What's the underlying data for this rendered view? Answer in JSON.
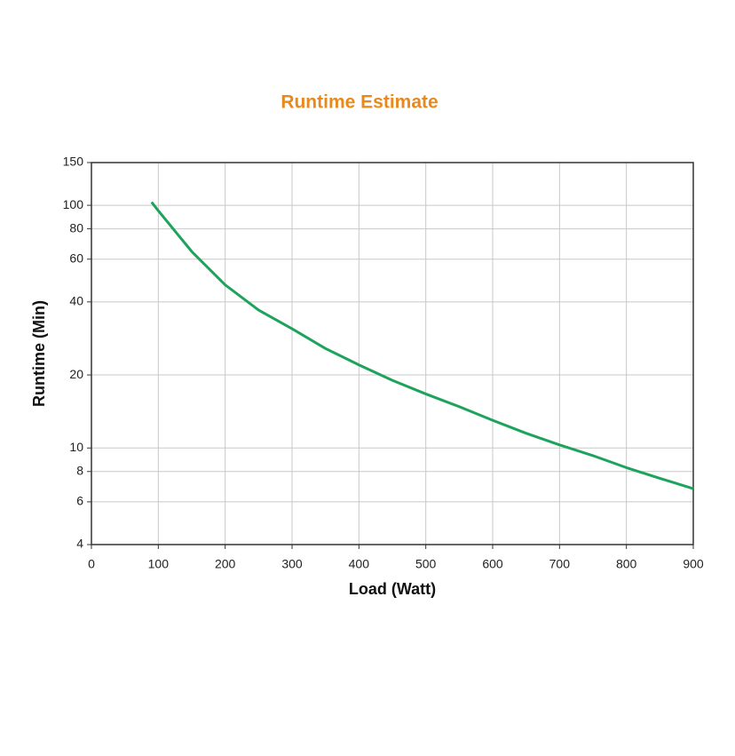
{
  "chart_data": {
    "type": "line",
    "title": "Runtime Estimate",
    "x_label": "Load (Watt)",
    "y_label": "Runtime (Min)",
    "x": [
      90,
      100,
      150,
      200,
      250,
      300,
      350,
      400,
      450,
      500,
      550,
      600,
      650,
      700,
      750,
      800,
      850,
      900
    ],
    "values": [
      103,
      95,
      64.5,
      47,
      37,
      31,
      25.7,
      22,
      19,
      16.7,
      14.8,
      13,
      11.5,
      10.3,
      9.3,
      8.3,
      7.5,
      6.8
    ],
    "color": "#1ea35c",
    "xlim": [
      0,
      900
    ],
    "xticks": [
      0,
      100,
      200,
      300,
      400,
      500,
      600,
      700,
      800,
      900
    ],
    "ylim": [
      4,
      150
    ],
    "yticks": [
      4,
      6,
      8,
      10,
      20,
      40,
      60,
      80,
      100,
      150
    ],
    "yscale": "log",
    "grid": true
  }
}
